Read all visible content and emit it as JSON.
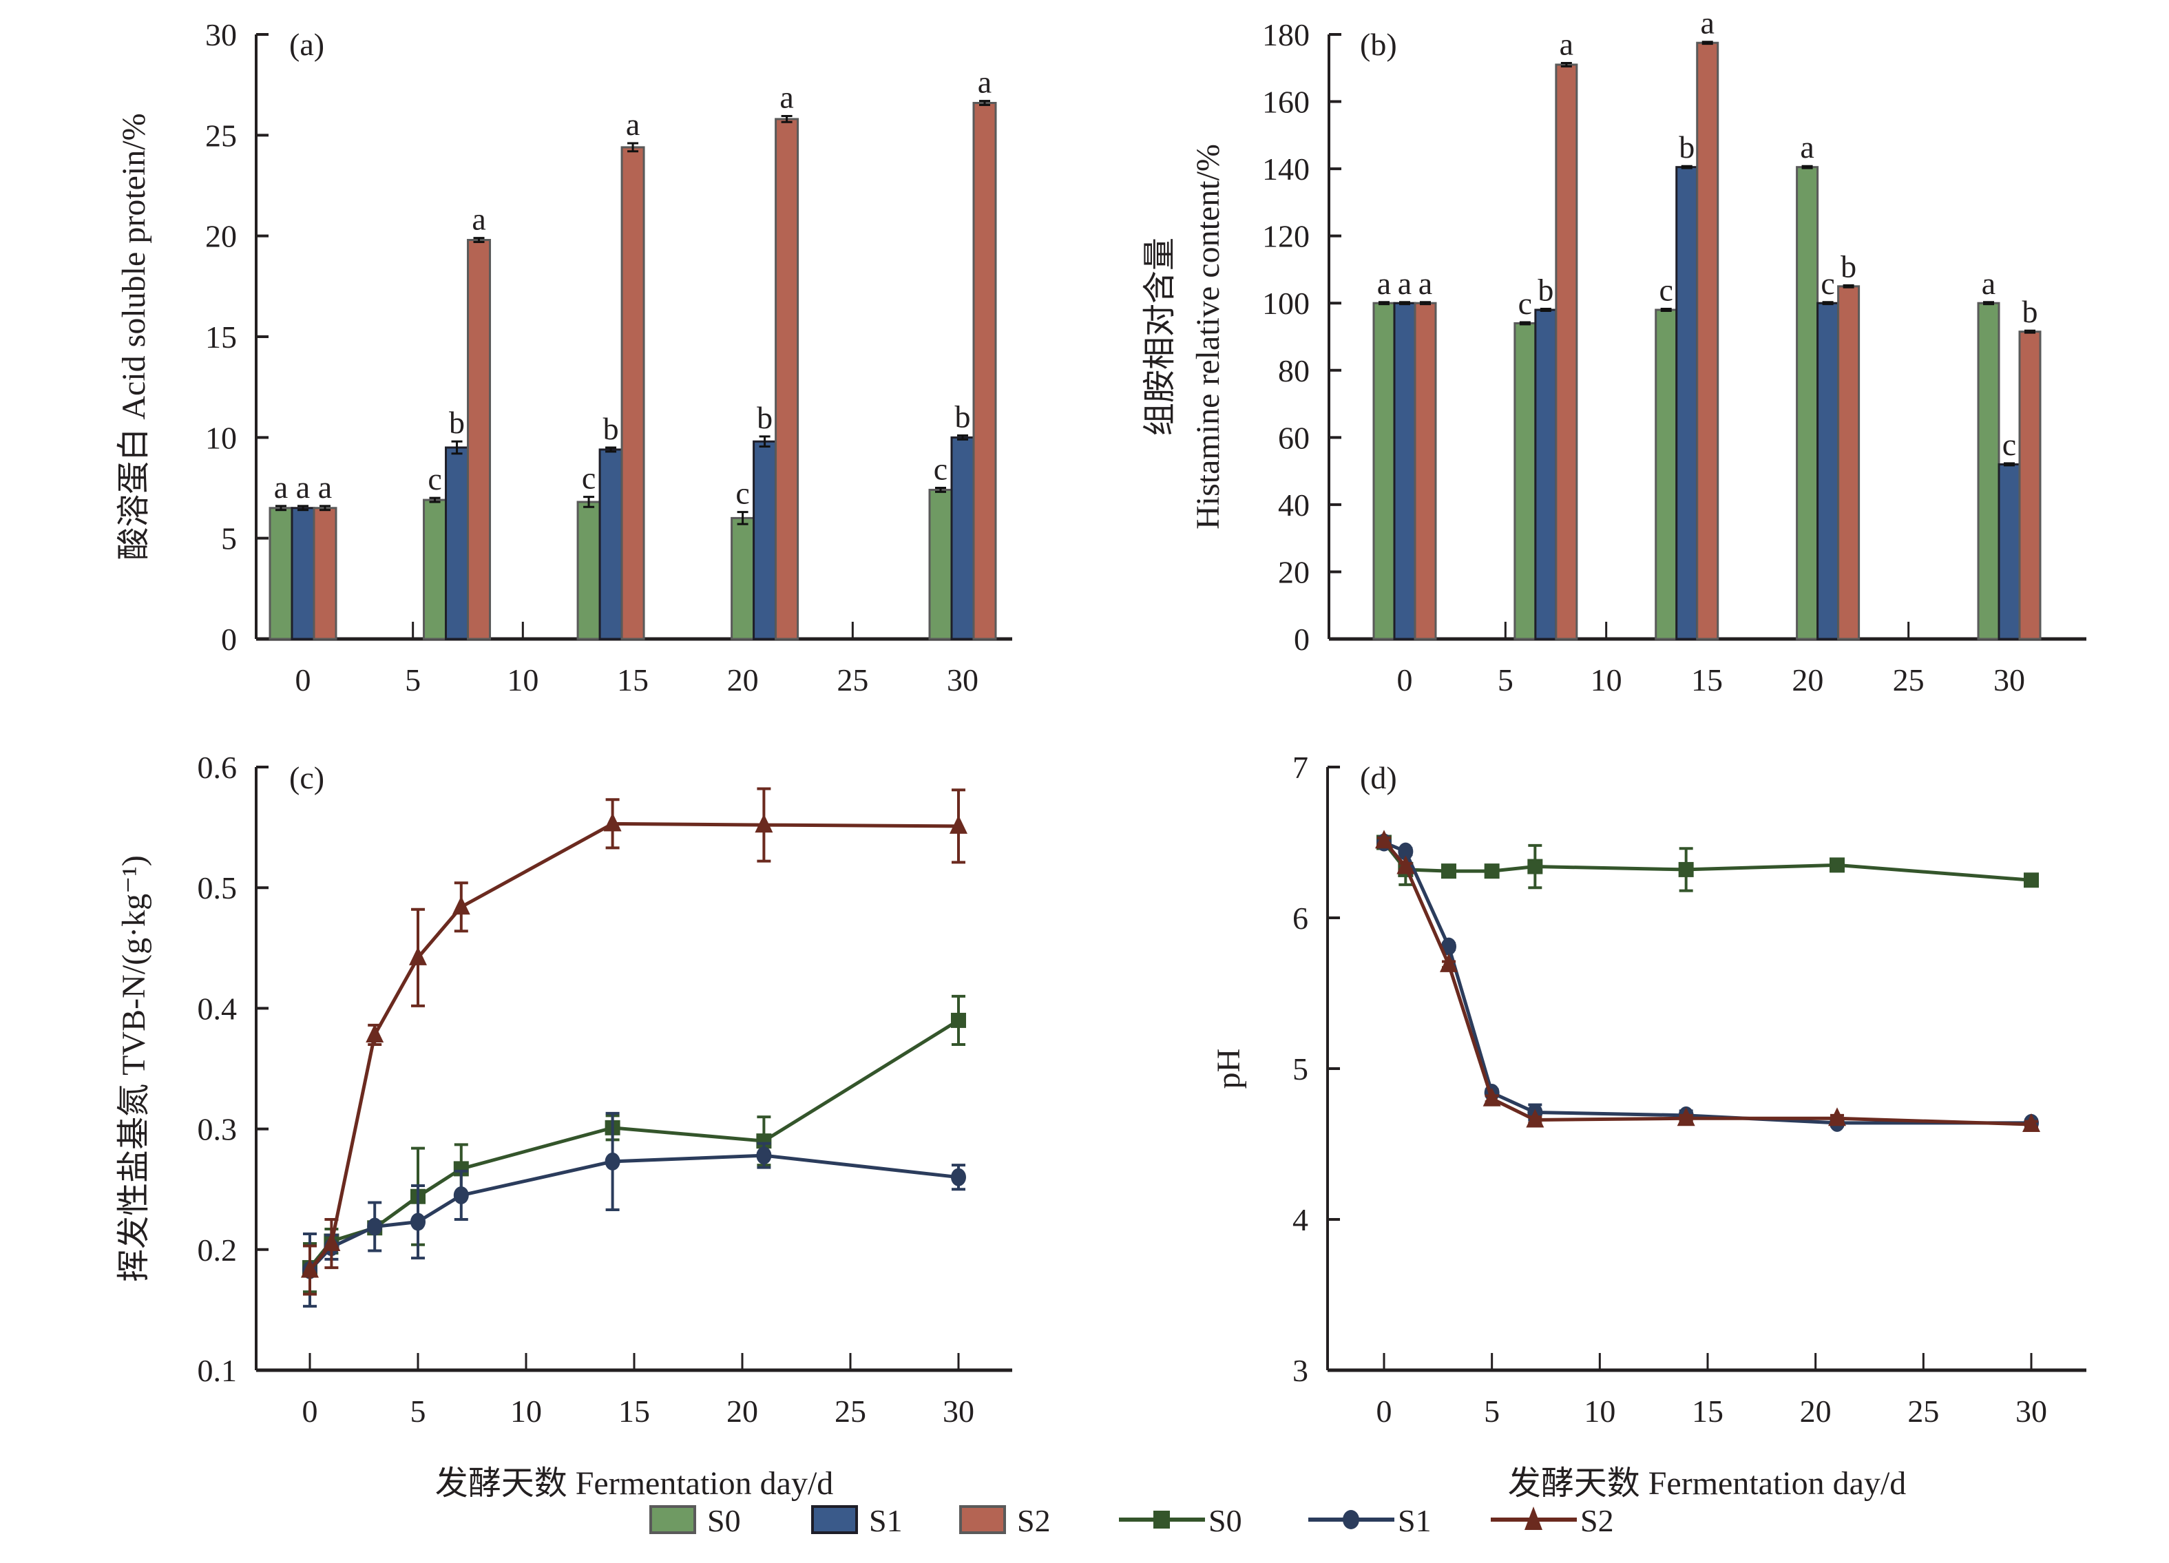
{
  "legend": {
    "bar_items": [
      {
        "label": "S0",
        "color": "#6f9a63"
      },
      {
        "label": "S1",
        "color": "#3a5a8a"
      },
      {
        "label": "S2",
        "color": "#b46453"
      }
    ],
    "line_items": [
      {
        "label": "S0",
        "color": "#34552b",
        "marker": "square"
      },
      {
        "label": "S1",
        "color": "#2b3c5c",
        "marker": "circle"
      },
      {
        "label": "S2",
        "color": "#6b2a1f",
        "marker": "triangle"
      }
    ]
  },
  "chart_data": [
    {
      "panel": "(a)",
      "type": "bar",
      "ylabel": "酸溶蛋白 Acid soluble protein/%",
      "xlabel": "",
      "ylim": [
        0,
        30
      ],
      "yticks": [
        0,
        5,
        10,
        15,
        20,
        25,
        30
      ],
      "xlim": [
        -2,
        33
      ],
      "xticks": [
        0,
        5,
        10,
        15,
        20,
        25,
        30
      ],
      "x": [
        0,
        7,
        14,
        21,
        30
      ],
      "series": [
        {
          "name": "S0",
          "values": [
            6.5,
            6.9,
            6.8,
            6.0,
            7.4
          ],
          "errors": [
            0.1,
            0.1,
            0.25,
            0.3,
            0.1
          ],
          "letters": [
            "a",
            "c",
            "c",
            "c",
            "c"
          ]
        },
        {
          "name": "S1",
          "values": [
            6.5,
            9.5,
            9.4,
            9.8,
            10.0
          ],
          "errors": [
            0.1,
            0.3,
            0.1,
            0.25,
            0.1
          ],
          "letters": [
            "a",
            "b",
            "b",
            "b",
            "b"
          ]
        },
        {
          "name": "S2",
          "values": [
            6.5,
            19.8,
            24.4,
            25.8,
            26.6
          ],
          "errors": [
            0.1,
            0.1,
            0.2,
            0.15,
            0.1
          ],
          "letters": [
            "a",
            "a",
            "a",
            "a",
            "a"
          ]
        }
      ]
    },
    {
      "panel": "(b)",
      "type": "bar",
      "ylabel_line1": "组胺相对含量",
      "ylabel_line2": "Histamine relative content/%",
      "xlabel": "",
      "ylim": [
        0,
        180
      ],
      "yticks": [
        0,
        20,
        40,
        60,
        80,
        100,
        120,
        140,
        160,
        180
      ],
      "xlim": [
        -2,
        33
      ],
      "xticks": [
        0,
        5,
        10,
        15,
        20,
        25,
        30
      ],
      "x": [
        0,
        7,
        14,
        21,
        30
      ],
      "series": [
        {
          "name": "S0",
          "values": [
            100,
            94,
            98,
            140.5,
            100
          ],
          "errors": [
            0.3,
            0.3,
            0.3,
            0.3,
            0.3
          ],
          "letters": [
            "a",
            "c",
            "c",
            "a",
            "a"
          ]
        },
        {
          "name": "S1",
          "values": [
            100,
            98,
            140.5,
            100,
            52
          ],
          "errors": [
            0.3,
            0.3,
            0.3,
            0.3,
            0.3
          ],
          "letters": [
            "a",
            "b",
            "b",
            "c",
            "c"
          ]
        },
        {
          "name": "S2",
          "values": [
            100,
            171,
            177.5,
            105,
            91.5
          ],
          "errors": [
            0.3,
            0.5,
            0.3,
            0.3,
            0.3
          ],
          "letters": [
            "a",
            "a",
            "a",
            "b",
            "b"
          ]
        }
      ]
    },
    {
      "panel": "(c)",
      "type": "line",
      "ylabel": "挥发性盐基氮 TVB-N/(g·kg⁻¹)",
      "xlabel": "发酵天数 Fermentation day/d",
      "ylim": [
        0.1,
        0.6
      ],
      "yticks": [
        0.1,
        0.2,
        0.3,
        0.4,
        0.5,
        0.6
      ],
      "xlim": [
        -2.5,
        33
      ],
      "xticks": [
        0,
        5,
        10,
        15,
        20,
        25,
        30
      ],
      "x": [
        0,
        1,
        3,
        5,
        7,
        14,
        21,
        30
      ],
      "series": [
        {
          "name": "S0",
          "values": [
            0.185,
            0.207,
            0.218,
            0.244,
            0.267,
            0.301,
            0.29,
            0.39
          ],
          "errors": [
            0.02,
            0.01,
            0.005,
            0.04,
            0.02,
            0.01,
            0.02,
            0.02
          ]
        },
        {
          "name": "S1",
          "values": [
            0.183,
            0.202,
            0.219,
            0.223,
            0.245,
            0.273,
            0.278,
            0.26
          ],
          "errors": [
            0.03,
            0.01,
            0.02,
            0.03,
            0.02,
            0.04,
            0.01,
            0.01
          ]
        },
        {
          "name": "S2",
          "values": [
            0.183,
            0.205,
            0.378,
            0.442,
            0.484,
            0.553,
            0.552,
            0.551
          ],
          "errors": [
            0.02,
            0.02,
            0.008,
            0.04,
            0.02,
            0.02,
            0.03,
            0.03
          ]
        }
      ]
    },
    {
      "panel": "(d)",
      "type": "line",
      "ylabel": "pH",
      "xlabel": "发酵天数 Fermentation day/d",
      "ylim": [
        3,
        7
      ],
      "yticks": [
        3,
        4,
        5,
        6,
        7
      ],
      "xlim": [
        -2.5,
        33
      ],
      "xticks": [
        0,
        5,
        10,
        15,
        20,
        25,
        30
      ],
      "x": [
        0,
        1,
        3,
        5,
        7,
        14,
        21,
        30
      ],
      "series": [
        {
          "name": "S0",
          "values": [
            6.5,
            6.32,
            6.31,
            6.31,
            6.34,
            6.32,
            6.35,
            6.25
          ],
          "errors": [
            0.02,
            0.1,
            0.02,
            0.02,
            0.14,
            0.14,
            0.04,
            0.02
          ]
        },
        {
          "name": "S1",
          "values": [
            6.5,
            6.44,
            5.81,
            4.84,
            4.71,
            4.69,
            4.64,
            4.64
          ],
          "errors": [
            0.02,
            0.02,
            0.02,
            0.02,
            0.05,
            0.03,
            0.02,
            0.02
          ]
        },
        {
          "name": "S2",
          "values": [
            6.51,
            6.34,
            5.69,
            4.8,
            4.66,
            4.67,
            4.67,
            4.63
          ],
          "errors": [
            0.02,
            0.02,
            0.02,
            0.02,
            0.02,
            0.02,
            0.02,
            0.02
          ]
        }
      ]
    }
  ]
}
